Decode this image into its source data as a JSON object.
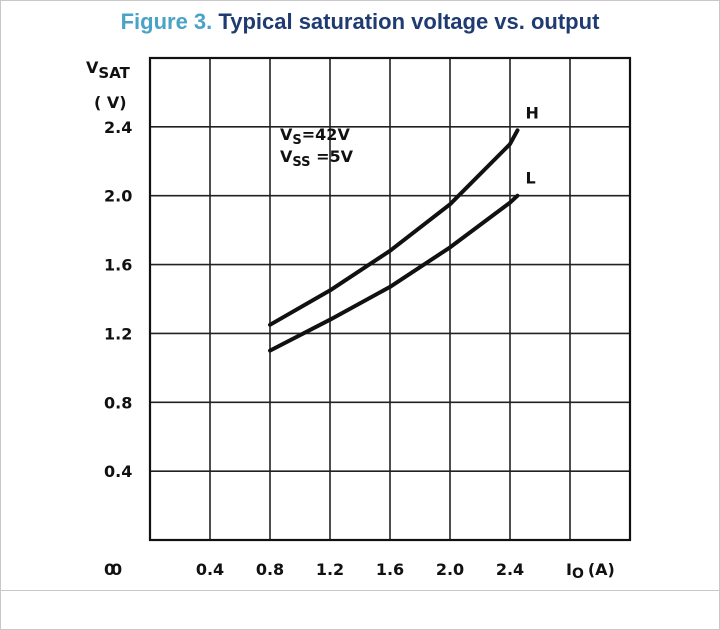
{
  "figure": {
    "number": "Figure 3.",
    "title": "Typical saturation voltage vs. output"
  },
  "chart_data": {
    "type": "line",
    "ylabel_main": "V",
    "ylabel_sub": "SAT",
    "ylabel_unit": "( V)",
    "xlabel_main": "I",
    "xlabel_sub": "O",
    "xlabel_unit": "(A)",
    "xlim": [
      0,
      3.2
    ],
    "ylim": [
      0,
      2.8
    ],
    "grid": true,
    "x_ticks": [
      "0",
      "0.4",
      "0.8",
      "1.2",
      "1.6",
      "2.0",
      "2.4"
    ],
    "y_ticks": [
      "0",
      "0.4",
      "0.8",
      "1.2",
      "1.6",
      "2.0",
      "2.4"
    ],
    "conditions": [
      {
        "main": "V",
        "sub": "S",
        "value": "=42V"
      },
      {
        "main": "V",
        "sub": "SS",
        "value": " =5V"
      }
    ],
    "series": [
      {
        "name": "H",
        "x": [
          0.8,
          1.2,
          1.6,
          2.0,
          2.4,
          2.45
        ],
        "y": [
          1.25,
          1.45,
          1.68,
          1.95,
          2.3,
          2.38
        ]
      },
      {
        "name": "L",
        "x": [
          0.8,
          1.2,
          1.6,
          2.0,
          2.4,
          2.45
        ],
        "y": [
          1.1,
          1.28,
          1.47,
          1.7,
          1.96,
          2.0
        ]
      }
    ]
  }
}
